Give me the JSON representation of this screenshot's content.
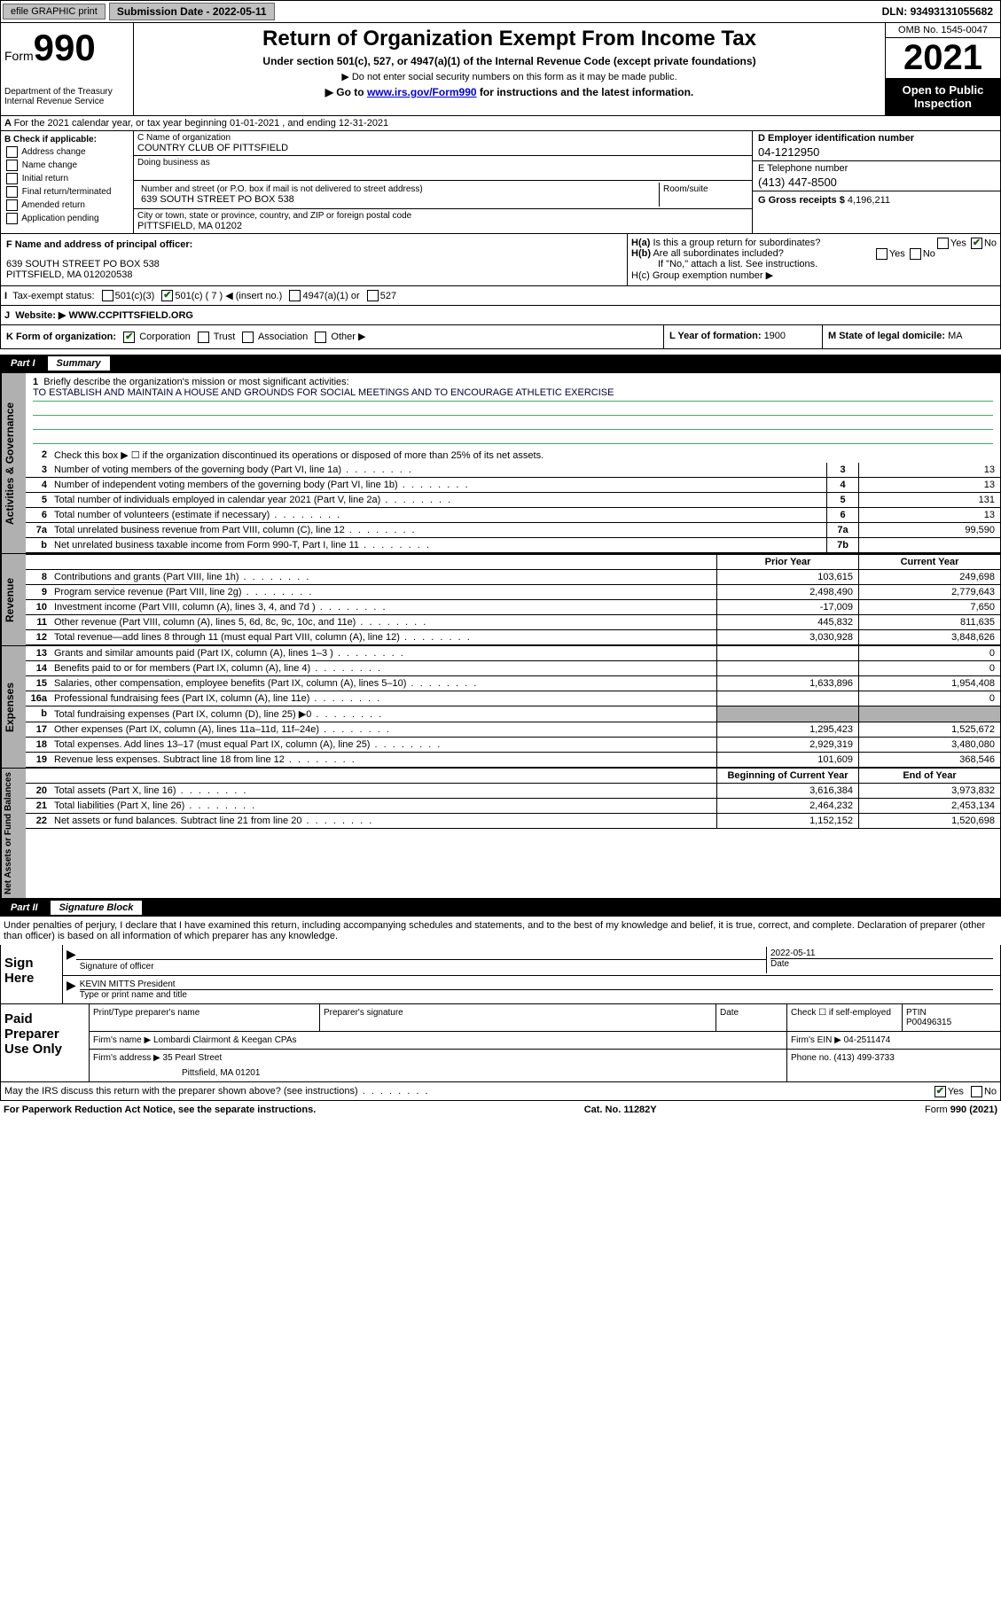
{
  "topbar": {
    "efile": "efile GRAPHIC print",
    "subdate_label": "Submission Date - ",
    "subdate": "2022-05-11",
    "dln_label": "DLN: ",
    "dln": "93493131055682"
  },
  "header": {
    "form_label": "Form",
    "form_num": "990",
    "dept": "Department of the Treasury\nInternal Revenue Service",
    "title": "Return of Organization Exempt From Income Tax",
    "sub": "Under section 501(c), 527, or 4947(a)(1) of the Internal Revenue Code (except private foundations)",
    "note1": "▶ Do not enter social security numbers on this form as it may be made public.",
    "note2_pre": "▶ Go to ",
    "note2_link": "www.irs.gov/Form990",
    "note2_post": " for instructions and the latest information.",
    "omb": "OMB No. 1545-0047",
    "year": "2021",
    "pubinsp": "Open to Public Inspection"
  },
  "lineA": "For the 2021 calendar year, or tax year beginning 01-01-2021   , and ending 12-31-2021",
  "colB": {
    "label": "B Check if applicable:",
    "items": [
      "Address change",
      "Name change",
      "Initial return",
      "Final return/terminated",
      "Amended return",
      "Application pending"
    ]
  },
  "colC": {
    "name_label": "C Name of organization",
    "name": "COUNTRY CLUB OF PITTSFIELD",
    "dba_label": "Doing business as",
    "addr_label": "Number and street (or P.O. box if mail is not delivered to street address)",
    "room_label": "Room/suite",
    "addr": "639 SOUTH STREET PO BOX 538",
    "city_label": "City or town, state or province, country, and ZIP or foreign postal code",
    "city": "PITTSFIELD, MA  01202"
  },
  "colD": {
    "d_label": "D Employer identification number",
    "d_val": "04-1212950",
    "e_label": "E Telephone number",
    "e_val": "(413) 447-8500",
    "g_label": "G Gross receipts $ ",
    "g_val": "4,196,211"
  },
  "lineF": {
    "label": "F Name and address of principal officer:",
    "addr": "639 SOUTH STREET PO BOX 538\nPITTSFIELD, MA  012020538",
    "ha": "H(a)  Is this a group return for subordinates?",
    "hb": "H(b)  Are all subordinates included?",
    "hb_note": "If \"No,\" attach a list. See instructions.",
    "hc": "H(c)  Group exemption number ▶"
  },
  "lineI": {
    "label": "Tax-exempt status:",
    "opts": [
      "501(c)(3)",
      "501(c) ( 7 ) ◀ (insert no.)",
      "4947(a)(1) or",
      "527"
    ]
  },
  "lineJ": {
    "label": "Website: ▶ ",
    "val": "WWW.CCPITTSFIELD.ORG"
  },
  "lineK": {
    "label": "K Form of organization:",
    "opts": [
      "Corporation",
      "Trust",
      "Association",
      "Other ▶"
    ],
    "lyear_label": "L Year of formation: ",
    "lyear": "1900",
    "mstate_label": "M State of legal domicile: ",
    "mstate": "MA"
  },
  "partI": {
    "bar_num": "Part I",
    "bar_title": "Summary",
    "q1": "Briefly describe the organization's mission or most significant activities:",
    "q1_ans": "TO ESTABLISH AND MAINTAIN A HOUSE AND GROUNDS FOR SOCIAL MEETINGS AND TO ENCOURAGE ATHLETIC EXERCISE",
    "q2": "Check this box ▶ ☐  if the organization discontinued its operations or disposed of more than 25% of its net assets.",
    "governance": [
      {
        "n": "3",
        "t": "Number of voting members of the governing body (Part VI, line 1a)",
        "c": "3",
        "v": "13"
      },
      {
        "n": "4",
        "t": "Number of independent voting members of the governing body (Part VI, line 1b)",
        "c": "4",
        "v": "13"
      },
      {
        "n": "5",
        "t": "Total number of individuals employed in calendar year 2021 (Part V, line 2a)",
        "c": "5",
        "v": "131"
      },
      {
        "n": "6",
        "t": "Total number of volunteers (estimate if necessary)",
        "c": "6",
        "v": "13"
      },
      {
        "n": "7a",
        "t": "Total unrelated business revenue from Part VIII, column (C), line 12",
        "c": "7a",
        "v": "99,590"
      },
      {
        "n": "b",
        "t": "Net unrelated business taxable income from Form 990-T, Part I, line 11",
        "c": "7b",
        "v": ""
      }
    ],
    "hdr_prior": "Prior Year",
    "hdr_curr": "Current Year",
    "revenue": [
      {
        "n": "8",
        "t": "Contributions and grants (Part VIII, line 1h)",
        "p": "103,615",
        "c": "249,698"
      },
      {
        "n": "9",
        "t": "Program service revenue (Part VIII, line 2g)",
        "p": "2,498,490",
        "c": "2,779,643"
      },
      {
        "n": "10",
        "t": "Investment income (Part VIII, column (A), lines 3, 4, and 7d )",
        "p": "-17,009",
        "c": "7,650"
      },
      {
        "n": "11",
        "t": "Other revenue (Part VIII, column (A), lines 5, 6d, 8c, 9c, 10c, and 11e)",
        "p": "445,832",
        "c": "811,635"
      },
      {
        "n": "12",
        "t": "Total revenue—add lines 8 through 11 (must equal Part VIII, column (A), line 12)",
        "p": "3,030,928",
        "c": "3,848,626"
      }
    ],
    "expenses": [
      {
        "n": "13",
        "t": "Grants and similar amounts paid (Part IX, column (A), lines 1–3 )",
        "p": "",
        "c": "0"
      },
      {
        "n": "14",
        "t": "Benefits paid to or for members (Part IX, column (A), line 4)",
        "p": "",
        "c": "0"
      },
      {
        "n": "15",
        "t": "Salaries, other compensation, employee benefits (Part IX, column (A), lines 5–10)",
        "p": "1,633,896",
        "c": "1,954,408"
      },
      {
        "n": "16a",
        "t": "Professional fundraising fees (Part IX, column (A), line 11e)",
        "p": "",
        "c": "0"
      },
      {
        "n": "b",
        "t": "Total fundraising expenses (Part IX, column (D), line 25) ▶0",
        "p": "shade",
        "c": "shade"
      },
      {
        "n": "17",
        "t": "Other expenses (Part IX, column (A), lines 11a–11d, 11f–24e)",
        "p": "1,295,423",
        "c": "1,525,672"
      },
      {
        "n": "18",
        "t": "Total expenses. Add lines 13–17 (must equal Part IX, column (A), line 25)",
        "p": "2,929,319",
        "c": "3,480,080"
      },
      {
        "n": "19",
        "t": "Revenue less expenses. Subtract line 18 from line 12",
        "p": "101,609",
        "c": "368,546"
      }
    ],
    "hdr_beg": "Beginning of Current Year",
    "hdr_end": "End of Year",
    "netassets": [
      {
        "n": "20",
        "t": "Total assets (Part X, line 16)",
        "p": "3,616,384",
        "c": "3,973,832"
      },
      {
        "n": "21",
        "t": "Total liabilities (Part X, line 26)",
        "p": "2,464,232",
        "c": "2,453,134"
      },
      {
        "n": "22",
        "t": "Net assets or fund balances. Subtract line 21 from line 20",
        "p": "1,152,152",
        "c": "1,520,698"
      }
    ],
    "side_gov": "Activities & Governance",
    "side_rev": "Revenue",
    "side_exp": "Expenses",
    "side_net": "Net Assets or Fund Balances"
  },
  "partII": {
    "bar_num": "Part II",
    "bar_title": "Signature Block",
    "intro": "Under penalties of perjury, I declare that I have examined this return, including accompanying schedules and statements, and to the best of my knowledge and belief, it is true, correct, and complete. Declaration of preparer (other than officer) is based on all information of which preparer has any knowledge.",
    "sign_here": "Sign Here",
    "sig_of_officer": "Signature of officer",
    "sig_date": "2022-05-11",
    "date_label": "Date",
    "officer_name": "KEVIN MITTS President",
    "officer_title_label": "Type or print name and title",
    "paid_label": "Paid Preparer Use Only",
    "prep_name_label": "Print/Type preparer's name",
    "prep_sig_label": "Preparer's signature",
    "check_if": "Check ☐ if self-employed",
    "ptin_label": "PTIN",
    "ptin": "P00496315",
    "firm_name_label": "Firm's name      ▶ ",
    "firm_name": "Lombardi Clairmont & Keegan CPAs",
    "firm_ein_label": "Firm's EIN ▶ ",
    "firm_ein": "04-2511474",
    "firm_addr_label": "Firm's address ▶ ",
    "firm_addr": "35 Pearl Street",
    "firm_city": "Pittsfield, MA  01201",
    "phone_label": "Phone no. ",
    "phone": "(413) 499-3733",
    "discuss": "May the IRS discuss this return with the preparer shown above? (see instructions)"
  },
  "footer": {
    "left": "For Paperwork Reduction Act Notice, see the separate instructions.",
    "mid": "Cat. No. 11282Y",
    "right": "Form 990 (2021)"
  }
}
